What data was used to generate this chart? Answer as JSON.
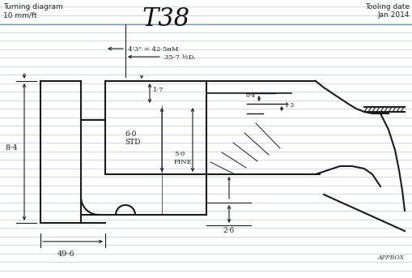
{
  "bg_color": "#ffffff",
  "line_color": "#1a1a1a",
  "ruled_line_color": "#b8c8e8",
  "title": "T38",
  "top_left_text1": "Turning diagram",
  "top_left_text2": "10 mm/ft",
  "top_right_text1": "Tooling date",
  "top_right_text2": "Jan 2014",
  "approx_label": "APPROX",
  "dim_42_5_label": "4'3\" = 42·5ʜM",
  "dim_35_7_label": "35-7 ½D.",
  "dim_8_4_label": "8·4",
  "dim_1_7_label": "1·7",
  "dim_6_0_label": "6·0",
  "dim_std_label": "STD",
  "dim_5_0_label": "5·0",
  "dim_fine_label": "FINE",
  "dim_2_6_label": "2·6",
  "dim_0_4_label": "0·4",
  "dim_1_3_label": "1·3",
  "dim_49_6_label": "49·6"
}
